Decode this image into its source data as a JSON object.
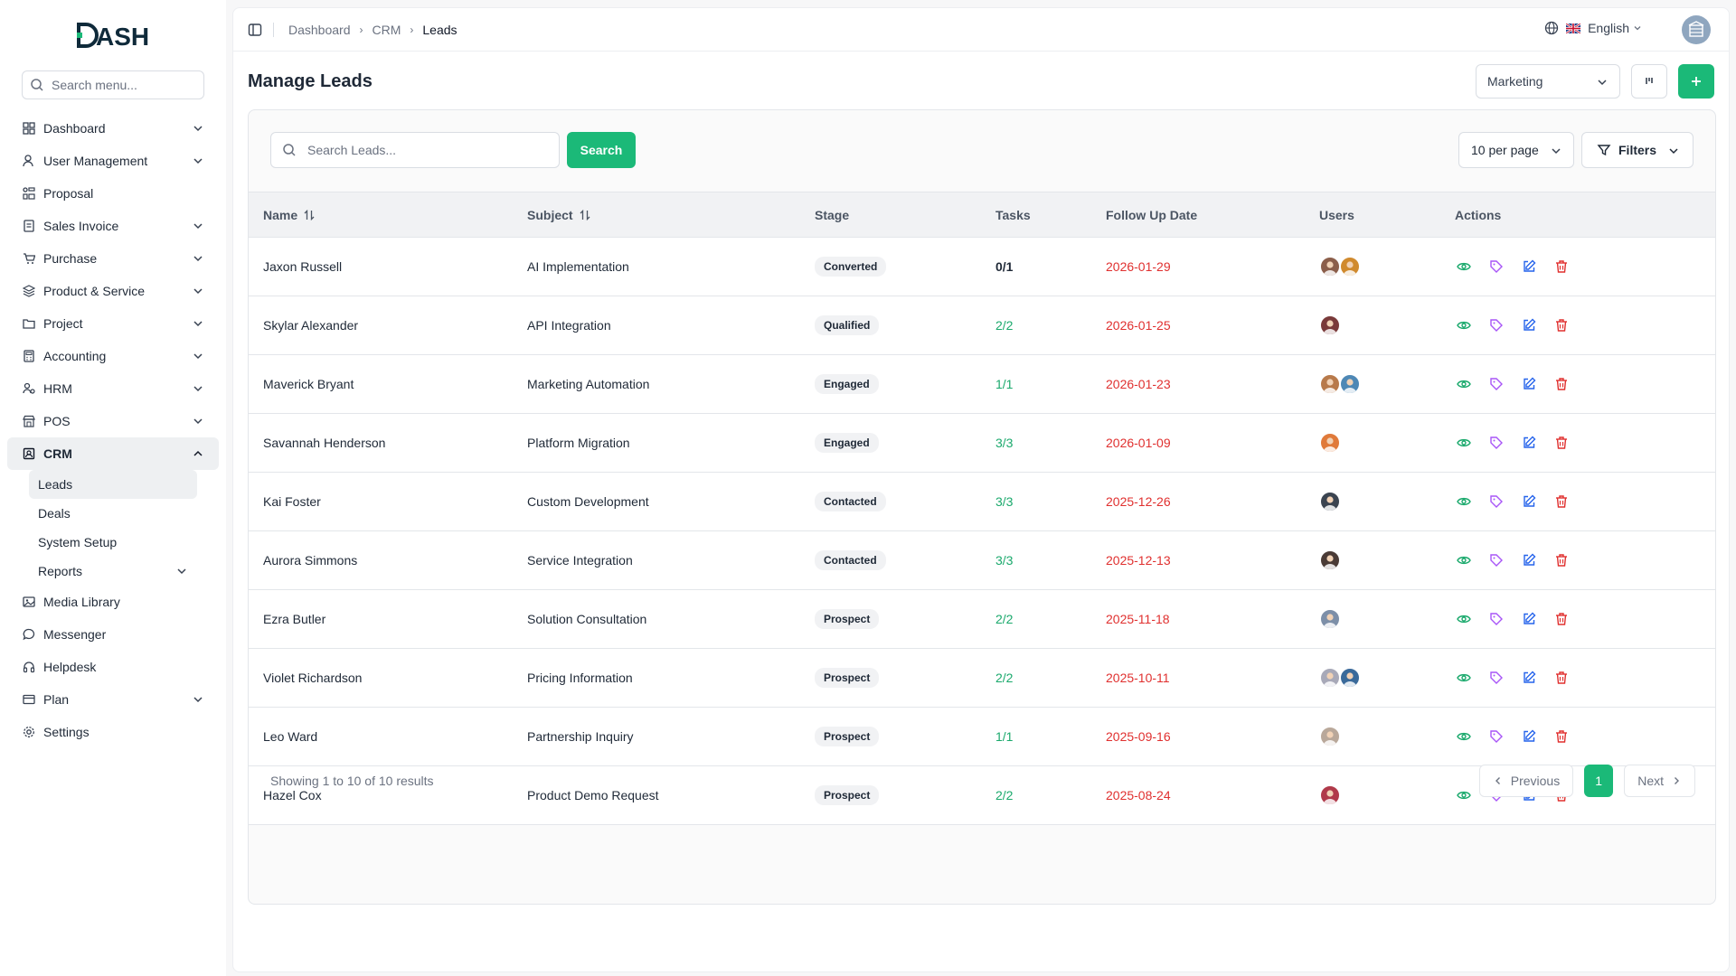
{
  "brand": {
    "logo_text": "DASH",
    "accent": "#1bb978"
  },
  "sidebar": {
    "search_placeholder": "Search menu...",
    "items": [
      {
        "label": "Dashboard",
        "icon": "grid-icon",
        "has_children": true
      },
      {
        "label": "User Management",
        "icon": "users-icon",
        "has_children": true
      },
      {
        "label": "Proposal",
        "icon": "proposal-icon",
        "has_children": false
      },
      {
        "label": "Sales Invoice",
        "icon": "invoice-icon",
        "has_children": true
      },
      {
        "label": "Purchase",
        "icon": "cart-icon",
        "has_children": true
      },
      {
        "label": "Product & Service",
        "icon": "layers-icon",
        "has_children": true
      },
      {
        "label": "Project",
        "icon": "folder-icon",
        "has_children": true
      },
      {
        "label": "Accounting",
        "icon": "calculator-icon",
        "has_children": true
      },
      {
        "label": "HRM",
        "icon": "hrm-icon",
        "has_children": true
      },
      {
        "label": "POS",
        "icon": "store-icon",
        "has_children": true
      },
      {
        "label": "CRM",
        "icon": "contact-icon",
        "has_children": true,
        "expanded": true
      }
    ],
    "crm_children": [
      {
        "label": "Leads",
        "active": true
      },
      {
        "label": "Deals"
      },
      {
        "label": "System Setup"
      },
      {
        "label": "Reports",
        "has_children": true
      }
    ],
    "items_after": [
      {
        "label": "Media Library",
        "icon": "image-icon",
        "has_children": false
      },
      {
        "label": "Messenger",
        "icon": "message-icon",
        "has_children": false
      },
      {
        "label": "Helpdesk",
        "icon": "headphones-icon",
        "has_children": false
      },
      {
        "label": "Plan",
        "icon": "card-icon",
        "has_children": true
      },
      {
        "label": "Settings",
        "icon": "gear-icon",
        "has_children": false
      }
    ]
  },
  "topbar": {
    "breadcrumb": [
      "Dashboard",
      "CRM",
      "Leads"
    ],
    "language": "English"
  },
  "page": {
    "title": "Manage Leads",
    "pipeline_select": "Marketing",
    "search_placeholder": "Search Leads...",
    "search_button": "Search",
    "per_page": "10 per page",
    "filters_label": "Filters"
  },
  "table": {
    "headers": [
      "Name",
      "Subject",
      "Stage",
      "Tasks",
      "Follow Up Date",
      "Users",
      "Actions"
    ],
    "rows": [
      {
        "name": "Jaxon Russell",
        "subject": "AI Implementation",
        "stage": "Converted",
        "tasks": "0/1",
        "date": "2026-01-29",
        "users": [
          "#8b5e4a",
          "#d08a2e"
        ]
      },
      {
        "name": "Skylar Alexander",
        "subject": "API Integration",
        "stage": "Qualified",
        "tasks": "2/2",
        "date": "2026-01-25",
        "users": [
          "#7a3a3a"
        ]
      },
      {
        "name": "Maverick Bryant",
        "subject": "Marketing Automation",
        "stage": "Engaged",
        "tasks": "1/1",
        "date": "2026-01-23",
        "users": [
          "#b87a4b",
          "#4e88b5"
        ]
      },
      {
        "name": "Savannah Henderson",
        "subject": "Platform Migration",
        "stage": "Engaged",
        "tasks": "3/3",
        "date": "2026-01-09",
        "users": [
          "#e07a3a"
        ]
      },
      {
        "name": "Kai Foster",
        "subject": "Custom Development",
        "stage": "Contacted",
        "tasks": "3/3",
        "date": "2025-12-26",
        "users": [
          "#3b4450"
        ]
      },
      {
        "name": "Aurora Simmons",
        "subject": "Service Integration",
        "stage": "Contacted",
        "tasks": "3/3",
        "date": "2025-12-13",
        "users": [
          "#4a3b36"
        ]
      },
      {
        "name": "Ezra Butler",
        "subject": "Solution Consultation",
        "stage": "Prospect",
        "tasks": "2/2",
        "date": "2025-11-18",
        "users": [
          "#7d8fa8"
        ]
      },
      {
        "name": "Violet Richardson",
        "subject": "Pricing Information",
        "stage": "Prospect",
        "tasks": "2/2",
        "date": "2025-10-11",
        "users": [
          "#a8a9b8",
          "#3a6a9a"
        ]
      },
      {
        "name": "Leo Ward",
        "subject": "Partnership Inquiry",
        "stage": "Prospect",
        "tasks": "1/1",
        "date": "2025-09-16",
        "users": [
          "#b9a89a"
        ]
      },
      {
        "name": "Hazel Cox",
        "subject": "Product Demo Request",
        "stage": "Prospect",
        "tasks": "2/2",
        "date": "2025-08-24",
        "users": [
          "#b03a4a"
        ]
      }
    ]
  },
  "footer": {
    "showing": "Showing 1 to 10 of 10 results",
    "previous": "Previous",
    "page": "1",
    "next": "Next"
  }
}
